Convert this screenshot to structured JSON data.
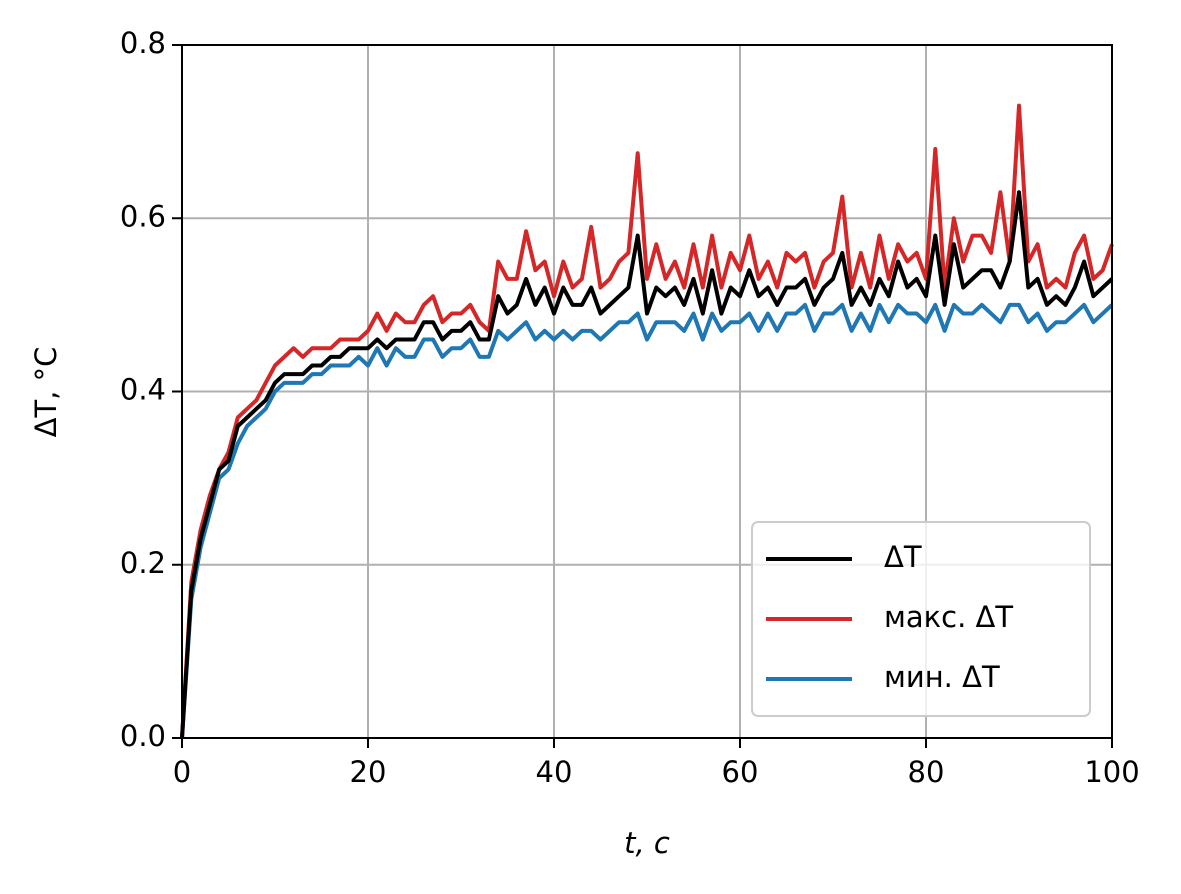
{
  "chart_data": {
    "type": "line",
    "x": [
      0,
      1,
      2,
      3,
      4,
      5,
      6,
      7,
      8,
      9,
      10,
      11,
      12,
      13,
      14,
      15,
      16,
      17,
      18,
      19,
      20,
      21,
      22,
      23,
      24,
      25,
      26,
      27,
      28,
      29,
      30,
      31,
      32,
      33,
      34,
      35,
      36,
      37,
      38,
      39,
      40,
      41,
      42,
      43,
      44,
      45,
      46,
      47,
      48,
      49,
      50,
      51,
      52,
      53,
      54,
      55,
      56,
      57,
      58,
      59,
      60,
      61,
      62,
      63,
      64,
      65,
      66,
      67,
      68,
      69,
      70,
      71,
      72,
      73,
      74,
      75,
      76,
      77,
      78,
      79,
      80,
      81,
      82,
      83,
      84,
      85,
      86,
      87,
      88,
      89,
      90,
      91,
      92,
      93,
      94,
      95,
      96,
      97,
      98,
      99,
      100
    ],
    "series": [
      {
        "name": "ΔT",
        "color": "#000000",
        "values": [
          0,
          0.17,
          0.23,
          0.27,
          0.31,
          0.32,
          0.36,
          0.37,
          0.38,
          0.39,
          0.41,
          0.42,
          0.42,
          0.42,
          0.43,
          0.43,
          0.44,
          0.44,
          0.45,
          0.45,
          0.45,
          0.46,
          0.45,
          0.46,
          0.46,
          0.46,
          0.48,
          0.48,
          0.46,
          0.47,
          0.47,
          0.48,
          0.46,
          0.46,
          0.51,
          0.49,
          0.5,
          0.53,
          0.5,
          0.52,
          0.49,
          0.52,
          0.5,
          0.5,
          0.52,
          0.49,
          0.5,
          0.51,
          0.52,
          0.58,
          0.49,
          0.52,
          0.51,
          0.52,
          0.5,
          0.53,
          0.49,
          0.54,
          0.49,
          0.52,
          0.51,
          0.54,
          0.51,
          0.52,
          0.5,
          0.52,
          0.52,
          0.53,
          0.5,
          0.52,
          0.53,
          0.56,
          0.5,
          0.52,
          0.5,
          0.53,
          0.51,
          0.55,
          0.52,
          0.53,
          0.51,
          0.58,
          0.5,
          0.57,
          0.52,
          0.53,
          0.54,
          0.54,
          0.52,
          0.55,
          0.63,
          0.52,
          0.53,
          0.5,
          0.51,
          0.5,
          0.52,
          0.55,
          0.51,
          0.52,
          0.53
        ]
      },
      {
        "name": "макс. ΔT",
        "color": "#d62728",
        "values": [
          0,
          0.18,
          0.24,
          0.28,
          0.31,
          0.33,
          0.37,
          0.38,
          0.39,
          0.41,
          0.43,
          0.44,
          0.45,
          0.44,
          0.45,
          0.45,
          0.45,
          0.46,
          0.46,
          0.46,
          0.47,
          0.49,
          0.47,
          0.49,
          0.48,
          0.48,
          0.5,
          0.51,
          0.48,
          0.49,
          0.49,
          0.5,
          0.48,
          0.47,
          0.55,
          0.53,
          0.53,
          0.585,
          0.54,
          0.55,
          0.51,
          0.55,
          0.52,
          0.53,
          0.59,
          0.52,
          0.53,
          0.55,
          0.56,
          0.675,
          0.53,
          0.57,
          0.53,
          0.55,
          0.52,
          0.57,
          0.52,
          0.58,
          0.52,
          0.56,
          0.54,
          0.58,
          0.53,
          0.55,
          0.52,
          0.56,
          0.55,
          0.56,
          0.52,
          0.55,
          0.56,
          0.625,
          0.52,
          0.56,
          0.52,
          0.58,
          0.53,
          0.57,
          0.55,
          0.56,
          0.53,
          0.68,
          0.52,
          0.6,
          0.55,
          0.58,
          0.58,
          0.56,
          0.63,
          0.55,
          0.73,
          0.55,
          0.57,
          0.52,
          0.53,
          0.52,
          0.56,
          0.58,
          0.53,
          0.54,
          0.57
        ]
      },
      {
        "name": "мин. ΔT",
        "color": "#1f77b4",
        "values": [
          0,
          0.16,
          0.22,
          0.26,
          0.3,
          0.31,
          0.34,
          0.36,
          0.37,
          0.38,
          0.4,
          0.41,
          0.41,
          0.41,
          0.42,
          0.42,
          0.43,
          0.43,
          0.43,
          0.44,
          0.43,
          0.45,
          0.43,
          0.45,
          0.44,
          0.44,
          0.46,
          0.46,
          0.44,
          0.45,
          0.45,
          0.46,
          0.44,
          0.44,
          0.47,
          0.46,
          0.47,
          0.48,
          0.46,
          0.47,
          0.46,
          0.47,
          0.46,
          0.47,
          0.47,
          0.46,
          0.47,
          0.48,
          0.48,
          0.49,
          0.46,
          0.48,
          0.48,
          0.48,
          0.47,
          0.49,
          0.46,
          0.49,
          0.47,
          0.48,
          0.48,
          0.49,
          0.47,
          0.49,
          0.47,
          0.49,
          0.49,
          0.5,
          0.47,
          0.49,
          0.49,
          0.5,
          0.47,
          0.49,
          0.47,
          0.5,
          0.48,
          0.5,
          0.49,
          0.49,
          0.48,
          0.5,
          0.47,
          0.5,
          0.49,
          0.49,
          0.5,
          0.49,
          0.48,
          0.5,
          0.5,
          0.48,
          0.49,
          0.47,
          0.48,
          0.48,
          0.49,
          0.5,
          0.48,
          0.49,
          0.5
        ]
      }
    ],
    "x_label": "t, с",
    "y_label": "ΔT, °C",
    "xlim": [
      0,
      100
    ],
    "xticks": [
      0,
      20,
      40,
      60,
      80,
      100
    ],
    "ylim": [
      0,
      0.8
    ],
    "yticks": [
      {
        "value": 0,
        "label": "0.0"
      },
      0.2,
      0.4,
      0.6,
      0.8
    ],
    "grid": true,
    "legend": "lower right"
  }
}
